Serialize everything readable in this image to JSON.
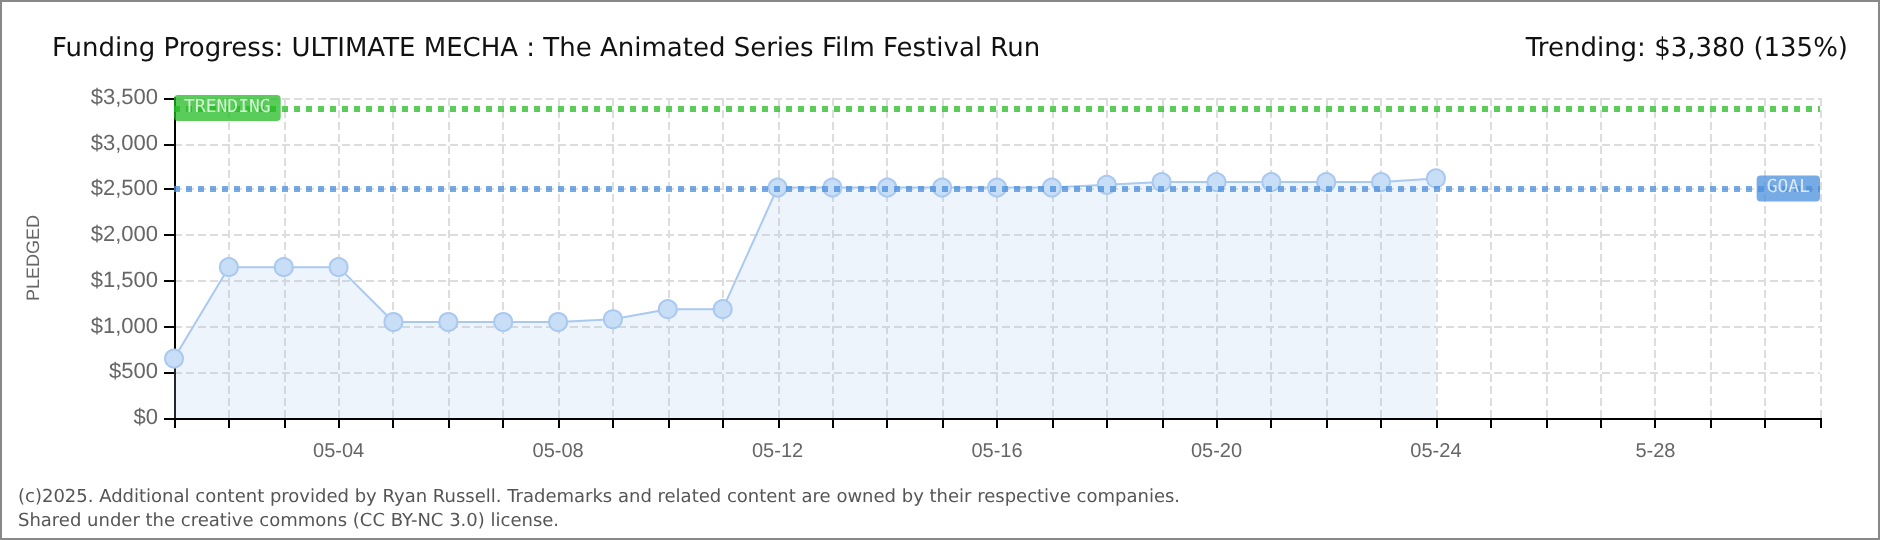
{
  "chart_data": {
    "type": "area",
    "title": "Funding Progress: ULTIMATE MECHA : The Animated Series Film Festival Run",
    "subtitle": "Trending: $3,380 (135%)",
    "ylabel": "PLEDGED",
    "annotations": [
      "(c)2025. Additional content provided by Ryan Russell. Trademarks and related content are owned by their respective companies.",
      "Shared under the creative commons (CC BY-NC 3.0) license."
    ],
    "categories": [
      null,
      null,
      null,
      "05-04",
      null,
      null,
      null,
      "05-08",
      null,
      null,
      null,
      "05-12",
      null,
      null,
      null,
      "05-16",
      null,
      null,
      null,
      "05-20",
      null,
      null,
      null,
      "05-24",
      null,
      null,
      null,
      "5-28",
      null,
      null,
      null
    ],
    "series": [
      {
        "color": "#a9c9f0",
        "values": [
          650,
          1650,
          1650,
          1650,
          1050,
          1050,
          1050,
          1050,
          1080,
          1190,
          1190,
          2520,
          2520,
          2520,
          2520,
          2520,
          2520,
          2550,
          2580,
          2580,
          2580,
          2580,
          2580,
          2620,
          null,
          null,
          null,
          null,
          null,
          null,
          null
        ]
      }
    ],
    "ylim": [
      0,
      3500
    ],
    "yticks": [
      {
        "value": 0,
        "label": "$0"
      },
      {
        "value": 500,
        "label": "$500"
      },
      {
        "value": 1000,
        "label": "$1,000"
      },
      {
        "value": 1500,
        "label": "$1,500"
      },
      {
        "value": 2000,
        "label": "$2,000"
      },
      {
        "value": 2500,
        "label": "$2,500"
      },
      {
        "value": 3000,
        "label": "$3,000"
      },
      {
        "value": 3500,
        "label": "$3,500"
      }
    ],
    "ref_lines": [
      {
        "axis": "y",
        "value": 2500,
        "label": "GOAL",
        "color": "#4a8fdc",
        "line_style": "dotted"
      },
      {
        "axis": "y",
        "value": 3380,
        "label": "TRENDING",
        "color": "#22bb22",
        "line_style": "dotted"
      }
    ],
    "grid": true,
    "marker": "circle",
    "line_style": "solid"
  }
}
